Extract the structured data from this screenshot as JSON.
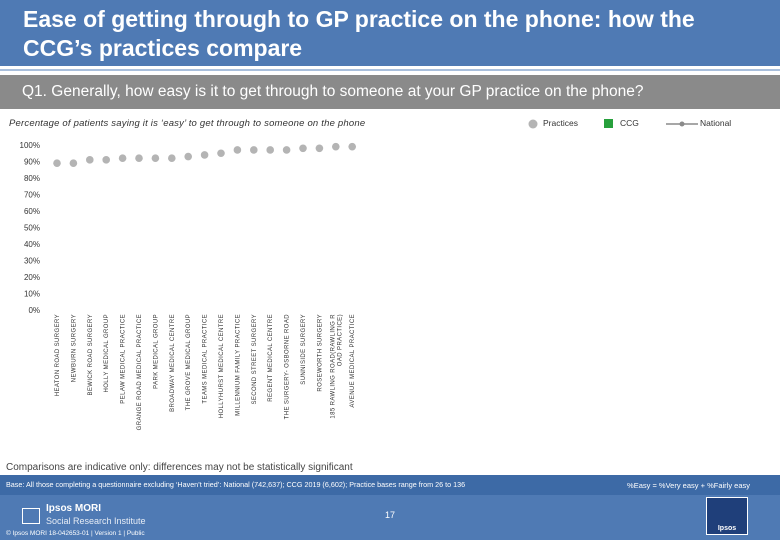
{
  "header": {
    "title": "Ease of getting through to GP practice on the phone: how the CCG’s practices compare"
  },
  "question": {
    "text": "Q1. Generally, how easy is it to get through to someone at your GP practice on the phone?"
  },
  "subtitle": "Percentage of patients saying it is ‘easy’ to get through to someone on the phone",
  "legend": {
    "practices": "Practices",
    "ccg": "CCG",
    "national": "National"
  },
  "colors": {
    "header_bg": "#4f7ab4",
    "practice_marker": "#b4b4b4",
    "ccg_marker": "#27a03c",
    "national_line": "#8a8a8a"
  },
  "chart_data": {
    "type": "scatter",
    "categories": [
      "HEATON ROAD SURGERY",
      "NEWBURN SURGERY",
      "BEWICK ROAD SURGERY",
      "HOLLY MEDICAL GROUP",
      "PELAW MEDICAL PRACTICE",
      "GRANGE ROAD MEDICAL PRACTICE",
      "PARK MEDICAL GROUP",
      "BROADWAY MEDICAL CENTRE",
      "THE GROVE MEDICAL GROUP",
      "TEAMS MEDICAL PRACTICE",
      "HOLLYHURST MEDICAL CENTRE",
      "MILLENNIUM FAMILY PRACTICE",
      "SECOND STREET SURGERY",
      "REGENT MEDICAL CENTRE",
      "THE SURGERY- OSBORNE ROAD",
      "SUNNISIDE SURGERY",
      "ROSEWORTH SURGERY",
      "185 RAWLING ROAD(RAWLING ROAD PRACTICE)",
      "AVENUE MEDICAL PRACTICE"
    ],
    "series": [
      {
        "values": [
          89,
          89,
          91,
          91,
          92,
          92,
          92,
          92,
          93,
          94,
          95,
          97,
          97,
          97,
          97,
          98,
          98,
          99,
          99
        ]
      }
    ],
    "ylim": [
      0,
      100
    ],
    "yticks": [
      "0%",
      "10%",
      "20%",
      "30%",
      "40%",
      "50%",
      "60%",
      "70%",
      "80%",
      "90%",
      "100%"
    ],
    "grid": false,
    "legend_position": "top-right"
  },
  "notes": {
    "comparison": "Comparisons are indicative only: differences may not be statistically significant",
    "base": "Base: All those completing a questionnaire excluding ‘Haven’t tried’: National (742,637); CCG 2019 (6,602); Practice bases range from 26 to 136",
    "easy_definition": "%Easy = %Very easy + %Fairly easy"
  },
  "footer": {
    "brand_line1": "Ipsos MORI",
    "brand_line2": "Social Research Institute",
    "copyright": "© Ipsos MORI    18-042653-01 | Version 1 | Public",
    "page_number": "17",
    "logo_text": "Ipsos"
  }
}
